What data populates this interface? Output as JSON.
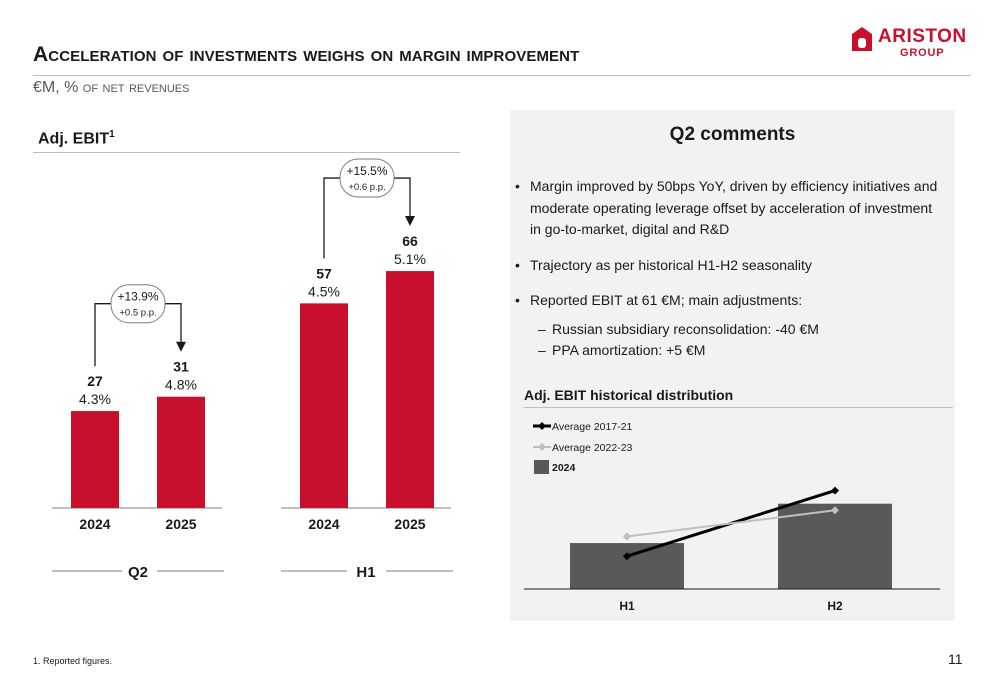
{
  "brand": {
    "name": "ARISTON",
    "group": "GROUP",
    "color": "#c8102e"
  },
  "header": {
    "title": "Acceleration of investments weighs on margin improvement",
    "subtitle": "€M, % of net revenues"
  },
  "left_section": {
    "title": "Adj. EBIT",
    "title_sup": "1"
  },
  "chart_data": [
    {
      "type": "bar",
      "group": "Q2",
      "categories": [
        "2024",
        "2025"
      ],
      "values": [
        27,
        31
      ],
      "margins": [
        "4.3%",
        "4.8%"
      ],
      "growth": {
        "pct": "+13.9%",
        "pp": "+0.5 p.p."
      },
      "ylim": [
        0,
        70
      ],
      "color": "#c8102e"
    },
    {
      "type": "bar",
      "group": "H1",
      "categories": [
        "2024",
        "2025"
      ],
      "values": [
        57,
        66
      ],
      "margins": [
        "4.5%",
        "5.1%"
      ],
      "growth": {
        "pct": "+15.5%",
        "pp": "+0.6 p.p."
      },
      "ylim": [
        0,
        70
      ],
      "color": "#c8102e"
    },
    {
      "type": "bar",
      "title": "Adj. EBIT historical distribution",
      "categories": [
        "H1",
        "H2"
      ],
      "series": [
        {
          "name": "2024",
          "kind": "bar",
          "values": [
            47,
            53
          ],
          "color": "#595959"
        },
        {
          "name": "Average 2017-21",
          "kind": "line",
          "values": [
            45,
            55
          ],
          "color": "#000000"
        },
        {
          "name": "Average 2022-23",
          "kind": "line",
          "values": [
            48,
            52
          ],
          "color": "#bfbfbf"
        }
      ],
      "ylim": [
        40,
        56
      ],
      "legend": "top-left"
    }
  ],
  "comments": {
    "title": "Q2 comments",
    "items": [
      {
        "text": "Margin improved by 50bps YoY, driven by efficiency initiatives and moderate operating leverage offset by acceleration of investment in go-to-market, digital and R&D"
      },
      {
        "text": "Trajectory as per historical H1-H2 seasonality"
      },
      {
        "text": "Reported EBIT at 61 €M; main adjustments:",
        "subitems": [
          "Russian subsidiary reconsolidation: -40 €M",
          "PPA amortization: +5 €M"
        ]
      }
    ]
  },
  "footnote": "1. Reported figures.",
  "page_number": "11"
}
